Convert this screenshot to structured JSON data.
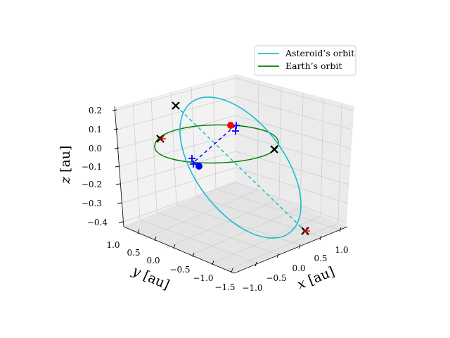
{
  "chart_data": {
    "type": "line",
    "projection": "3d",
    "xlabel": "$x$ [au]",
    "ylabel": "$y$ [au]",
    "zlabel": "$z$ [au]",
    "x_ticks": [
      "−1.0",
      "−0.5",
      "0.0",
      "0.5",
      "1.0"
    ],
    "y_ticks": [
      "1.0",
      "0.5",
      "0.0",
      "−0.5",
      "−1.0",
      "−1.5"
    ],
    "z_ticks": [
      "0.2",
      "0.1",
      "0.0",
      "−0.1",
      "−0.2",
      "−0.3",
      "−0.4"
    ],
    "legend_position": "top-right",
    "grid": true,
    "series": [
      {
        "name": "Asteroid’s orbit",
        "color": "#17becf",
        "kind": "orbit"
      },
      {
        "name": "Earth’s orbit",
        "color": "#008000",
        "kind": "orbit"
      }
    ],
    "markers": {
      "asteroid_position_color": "#0000ff",
      "earth_position_color": "#ff0000",
      "node_marker_color": "#0000ff",
      "apsis_marker_color": "#000000",
      "earth_marker_color": "#ff0000"
    }
  }
}
